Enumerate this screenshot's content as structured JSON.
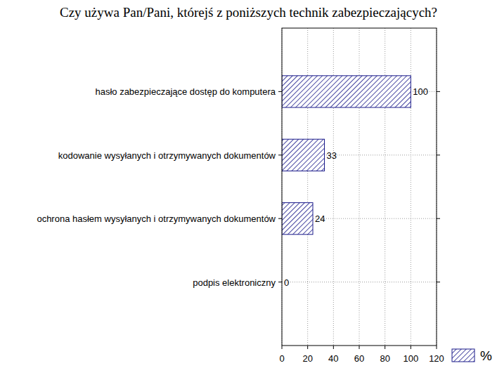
{
  "chart_data": {
    "type": "bar",
    "title": "Czy używa Pan/Pani, którejś z poniższych technik zabezpieczających?",
    "orientation": "horizontal",
    "categories": [
      "hasło zabezpieczające dostęp do komputera",
      "kodowanie wysyłanych i otrzymywanych dokumentów",
      "ochrona hasłem wysyłanych i otrzymywanych dokumentów",
      "podpis elektroniczny"
    ],
    "series": [
      {
        "name": "%",
        "color": "#1a1a8a",
        "values": [
          100,
          33,
          24,
          0
        ]
      }
    ],
    "xlim": [
      0,
      120
    ],
    "xticks": [
      0,
      20,
      40,
      60,
      80,
      100,
      120
    ],
    "grid": true,
    "data_labels": true,
    "legend": "bottom-right"
  }
}
